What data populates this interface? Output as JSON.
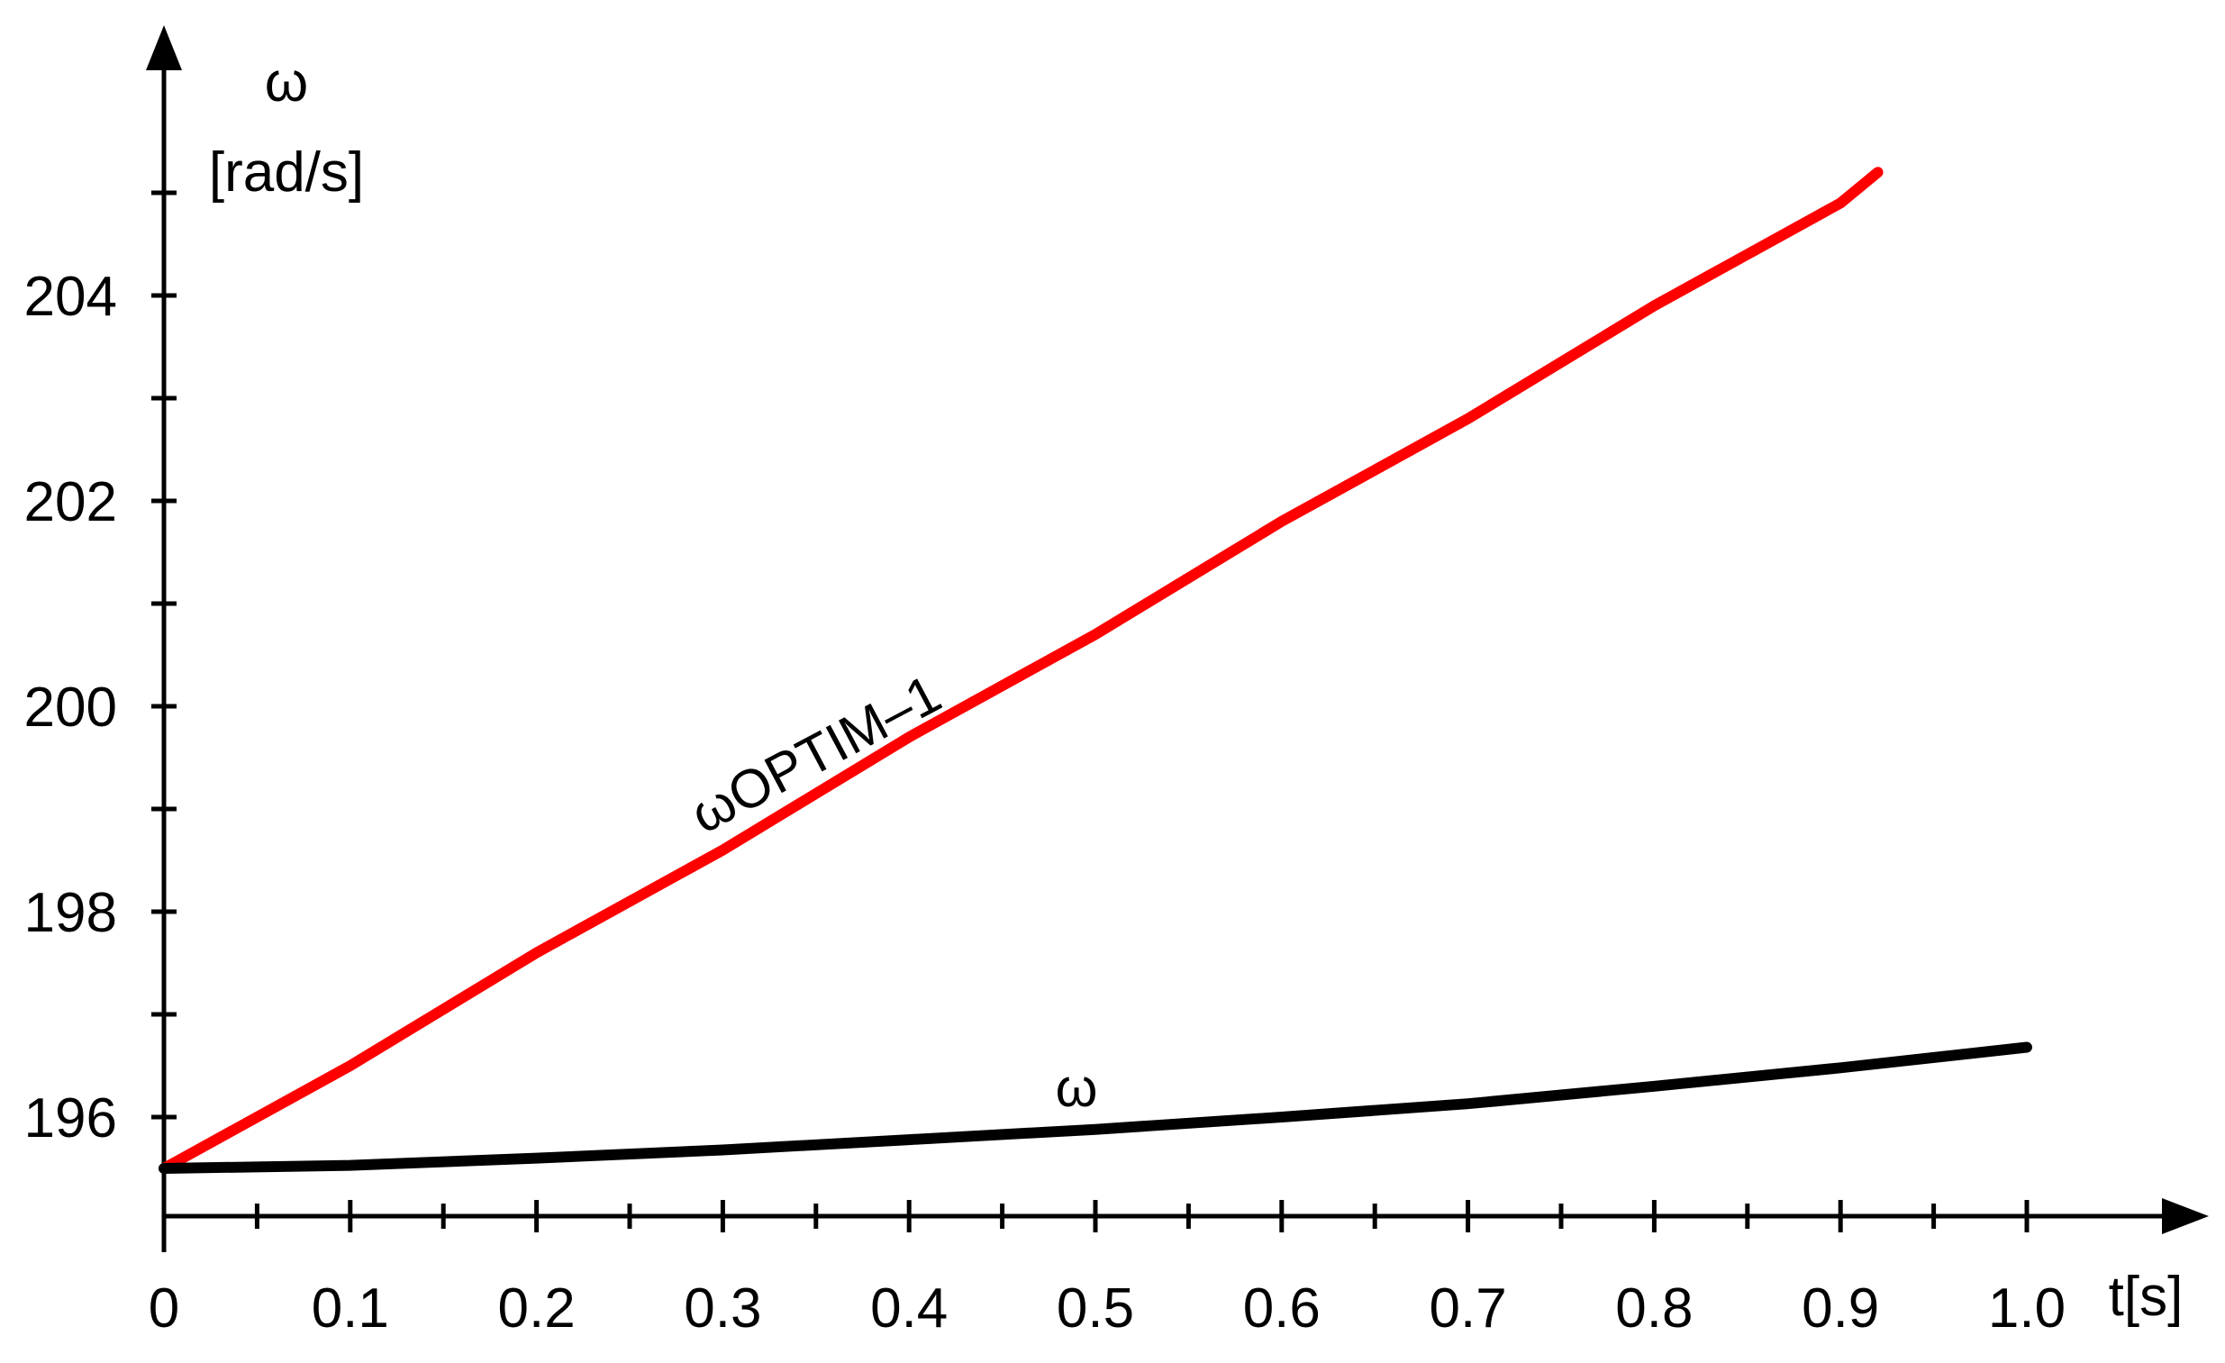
{
  "chart_data": {
    "type": "line",
    "title": "",
    "ylabel_symbol": "ω",
    "ylabel_unit": "[rad/s]",
    "xlabel": "t[s]",
    "xlim": [
      0,
      1.07
    ],
    "ylim": [
      195.1,
      206.8
    ],
    "x_ticks": [
      "0",
      "0.1",
      "0.2",
      "0.3",
      "0.4",
      "0.5",
      "0.6",
      "0.7",
      "0.8",
      "0.9",
      "1.0"
    ],
    "x_tick_values": [
      0,
      0.1,
      0.2,
      0.3,
      0.4,
      0.5,
      0.6,
      0.7,
      0.8,
      0.9,
      1.0
    ],
    "y_ticks": [
      "196",
      "198",
      "200",
      "202",
      "204"
    ],
    "y_tick_values": [
      196,
      198,
      200,
      202,
      204
    ],
    "grid": false,
    "series": [
      {
        "name": "ωOPTIM–1",
        "color": "#ff0000",
        "x": [
          0,
          0.1,
          0.2,
          0.3,
          0.4,
          0.5,
          0.6,
          0.7,
          0.8,
          0.9,
          0.92
        ],
        "y": [
          195.5,
          196.5,
          197.6,
          198.6,
          199.7,
          200.7,
          201.8,
          202.8,
          203.9,
          204.9,
          205.2
        ]
      },
      {
        "name": "ω",
        "color": "#000000",
        "x": [
          0,
          0.1,
          0.2,
          0.3,
          0.4,
          0.5,
          0.6,
          0.7,
          0.8,
          0.9,
          1.0
        ],
        "y": [
          195.5,
          195.53,
          195.6,
          195.68,
          195.78,
          195.88,
          196.0,
          196.13,
          196.3,
          196.48,
          196.68
        ]
      }
    ]
  }
}
